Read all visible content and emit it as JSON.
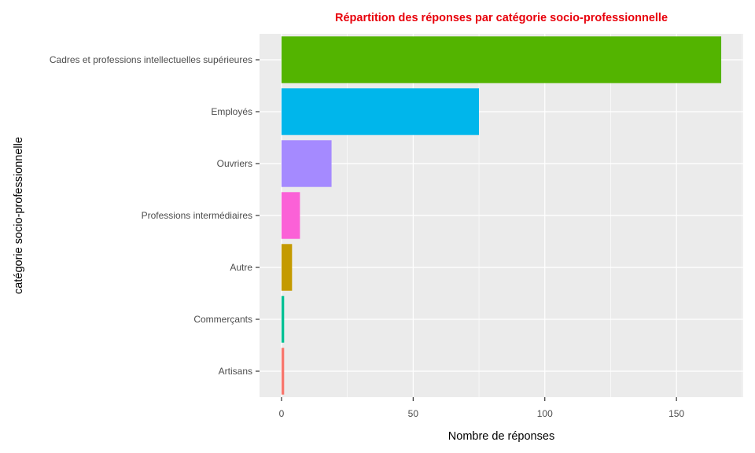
{
  "chart_data": {
    "type": "bar",
    "orientation": "horizontal",
    "title": "Répartition des réponses par catégorie socio-professionnelle",
    "xlabel": "Nombre de réponses",
    "ylabel": "catégorie socio-professionnelle",
    "categories": [
      "Cadres et professions intellectuelles supérieures",
      "Employés",
      "Ouvriers",
      "Professions intermédiaires",
      "Autre",
      "Commerçants",
      "Artisans"
    ],
    "values": [
      167,
      75,
      19,
      7,
      4,
      1,
      1
    ],
    "xlim": [
      -8.35,
      175.35
    ],
    "xticks": [
      0,
      50,
      100,
      150
    ],
    "grid": true,
    "legend": "none",
    "colors": {
      "title": "#e8000b",
      "panel": "#ebebeb",
      "grid": "#ffffff",
      "bars": [
        "#53b400",
        "#00b6eb",
        "#a58aff",
        "#fb61d7",
        "#c49a00",
        "#00c094",
        "#f8766d"
      ]
    }
  }
}
